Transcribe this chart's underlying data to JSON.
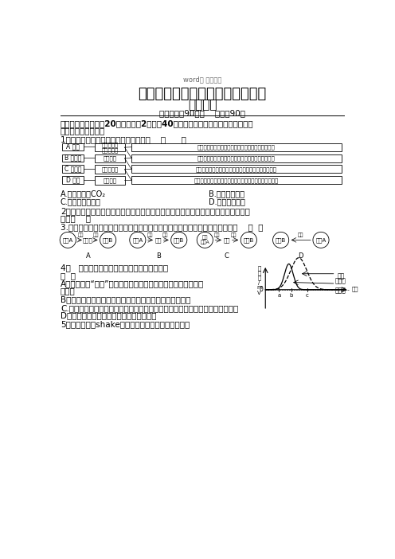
{
  "bg_color": "#ffffff",
  "header": "word版 高中生物",
  "title": "许昌市四校高二上学期第三次考试",
  "subtitle": "生物试卷",
  "exam_info": "考试时间：90分钟    总分：90分",
  "section1": "一、选择题（本题有20小题，每邘2分，全40分，在每小题的选项中，只有一个是",
  "section1b": "符合题目要求的。）",
  "q1": "1．下列物质都可以在内环境中找到的是    （      ）",
  "q1_left": [
    "腺垂",
    "腿上腺",
    "下丘脑",
    "卵巢"
  ],
  "q1_left_labels": [
    "A",
    "B",
    "C",
    "D"
  ],
  "q1_mid": [
    "促甲状腺激\n素释放激素",
    "雌性激素",
    "胰高血糖素",
    "肾上腺素"
  ],
  "q1_right": [
    "维持第二性征，促进雌性生殖器官发育和排放卵细胞",
    "促进甲状腺生长发育，调节甲状腺激素的合成和分泌",
    "促进新陈代谢，使产热量增加，从而维持机体体温恒定",
    "促进组织细胞摄取、利用、储存葡萄糖，使血糖浓度升高"
  ],
  "q1_opt_a": "A.血红蛋白和CO₂",
  "q1_opt_b": "B.尿素和维生素",
  "q1_opt_c": "C.胰岛素和纤维素",
  "q1_opt_d": "D.载体和呼吸酶",
  "q2": "2．如图是人体内部分激素的产生部位和生理作用，下列连线和叙述内容全部正确的一",
  "q2b": "组是（    ）",
  "q3": "3.动物体内激素传递信息的方式有多种，下列属于抗利尿激素传递信息的方式是    （  ）",
  "q4": "4．   下列关于神经系统功能的说法，错误的是",
  "q4b": "（  ）",
  "q4a": "A．成人可以“憢尿”，体现了高级神经中枢对低级神经中枢的控",
  "q4a2": "制作用",
  "q4b_opt": "B．感受器和效应器不一定分布在机体的同一组织或器官中",
  "q4c": "C.体内外刺激作用于机体后，产生的兴奋只有传到大脑皮层，机体才能产生感觉",
  "q4d": "D．学习和记忆是只有人才独有的高级功能",
  "q5": "5．科学家发现shake突变纯合子果蝇对二乙酰乙酸极"
}
